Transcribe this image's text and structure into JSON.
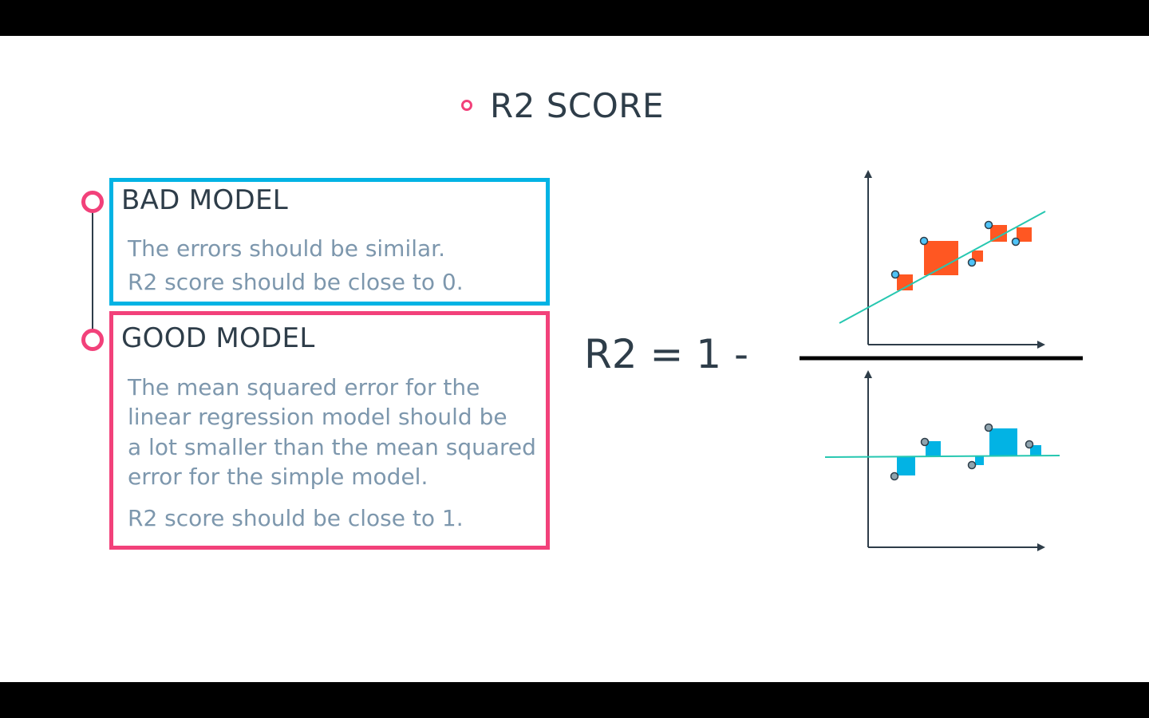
{
  "title": {
    "bullet_icon": "ring-bullet-icon",
    "text": "R2 SCORE"
  },
  "colors": {
    "accent_pink": "#f2417a",
    "accent_blue": "#02b3e4",
    "error_orange": "#ff5722",
    "fit_line_teal": "#26c7b0",
    "heading_dark": "#2e3d49",
    "body_gray": "#7d97ad"
  },
  "bad_model": {
    "heading": "BAD MODEL",
    "lines": [
      "The errors should be similar.",
      "R2 score should be close to 0."
    ]
  },
  "good_model": {
    "heading": "GOOD MODEL",
    "lines": [
      "The mean squared error for the",
      "linear regression model should be",
      "a lot smaller than the mean squared",
      "error for the simple model.",
      "R2 score should be close to 1."
    ]
  },
  "formula": {
    "text": "R2 = 1 -"
  },
  "fraction": {
    "numerator": {
      "description_icon": "regression-error-squares-plot"
    },
    "denominator": {
      "description_icon": "mean-error-squares-plot"
    }
  }
}
